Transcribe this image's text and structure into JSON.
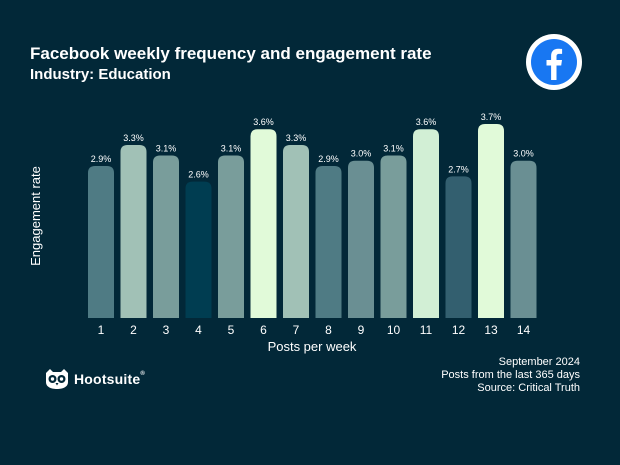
{
  "header": {
    "title": "Facebook weekly frequency  and engagement rate",
    "subtitle": "Industry: Education"
  },
  "icons": {
    "platform": "facebook-icon",
    "brand": "owl-logo-icon"
  },
  "brand": {
    "name": "Hootsuite",
    "mark": "®"
  },
  "notes": {
    "date": "September 2024",
    "period": "Posts from the last 365 days",
    "source": "Source: Critical Truth"
  },
  "colors": {
    "background": "#022838",
    "facebook_blue": "#1877f2"
  },
  "chart_data": {
    "type": "bar",
    "xlabel": "Posts per week",
    "ylabel": "Engagement rate",
    "categories": [
      "1",
      "2",
      "3",
      "4",
      "5",
      "6",
      "7",
      "8",
      "9",
      "10",
      "11",
      "12",
      "13",
      "14"
    ],
    "values": [
      2.9,
      3.3,
      3.1,
      2.6,
      3.1,
      3.6,
      3.3,
      2.9,
      3.0,
      3.1,
      3.6,
      2.7,
      3.7,
      3.0
    ],
    "value_labels": [
      "2.9%",
      "3.3%",
      "3.1%",
      "2.6%",
      "3.1%",
      "3.6%",
      "3.3%",
      "2.9%",
      "3.0%",
      "3.1%",
      "3.6%",
      "2.7%",
      "3.7%",
      "3.0%"
    ],
    "bar_colors": [
      "#4f7b84",
      "#a1c1b6",
      "#799d9b",
      "#003d51",
      "#799d9b",
      "#e1fad9",
      "#a1c1b6",
      "#4f7b84",
      "#6a8f93",
      "#799d9b",
      "#d2efd5",
      "#335f6f",
      "#e1fad9",
      "#6a8f93"
    ],
    "ylim": [
      0,
      3.7
    ],
    "grid": false,
    "legend": "none"
  }
}
